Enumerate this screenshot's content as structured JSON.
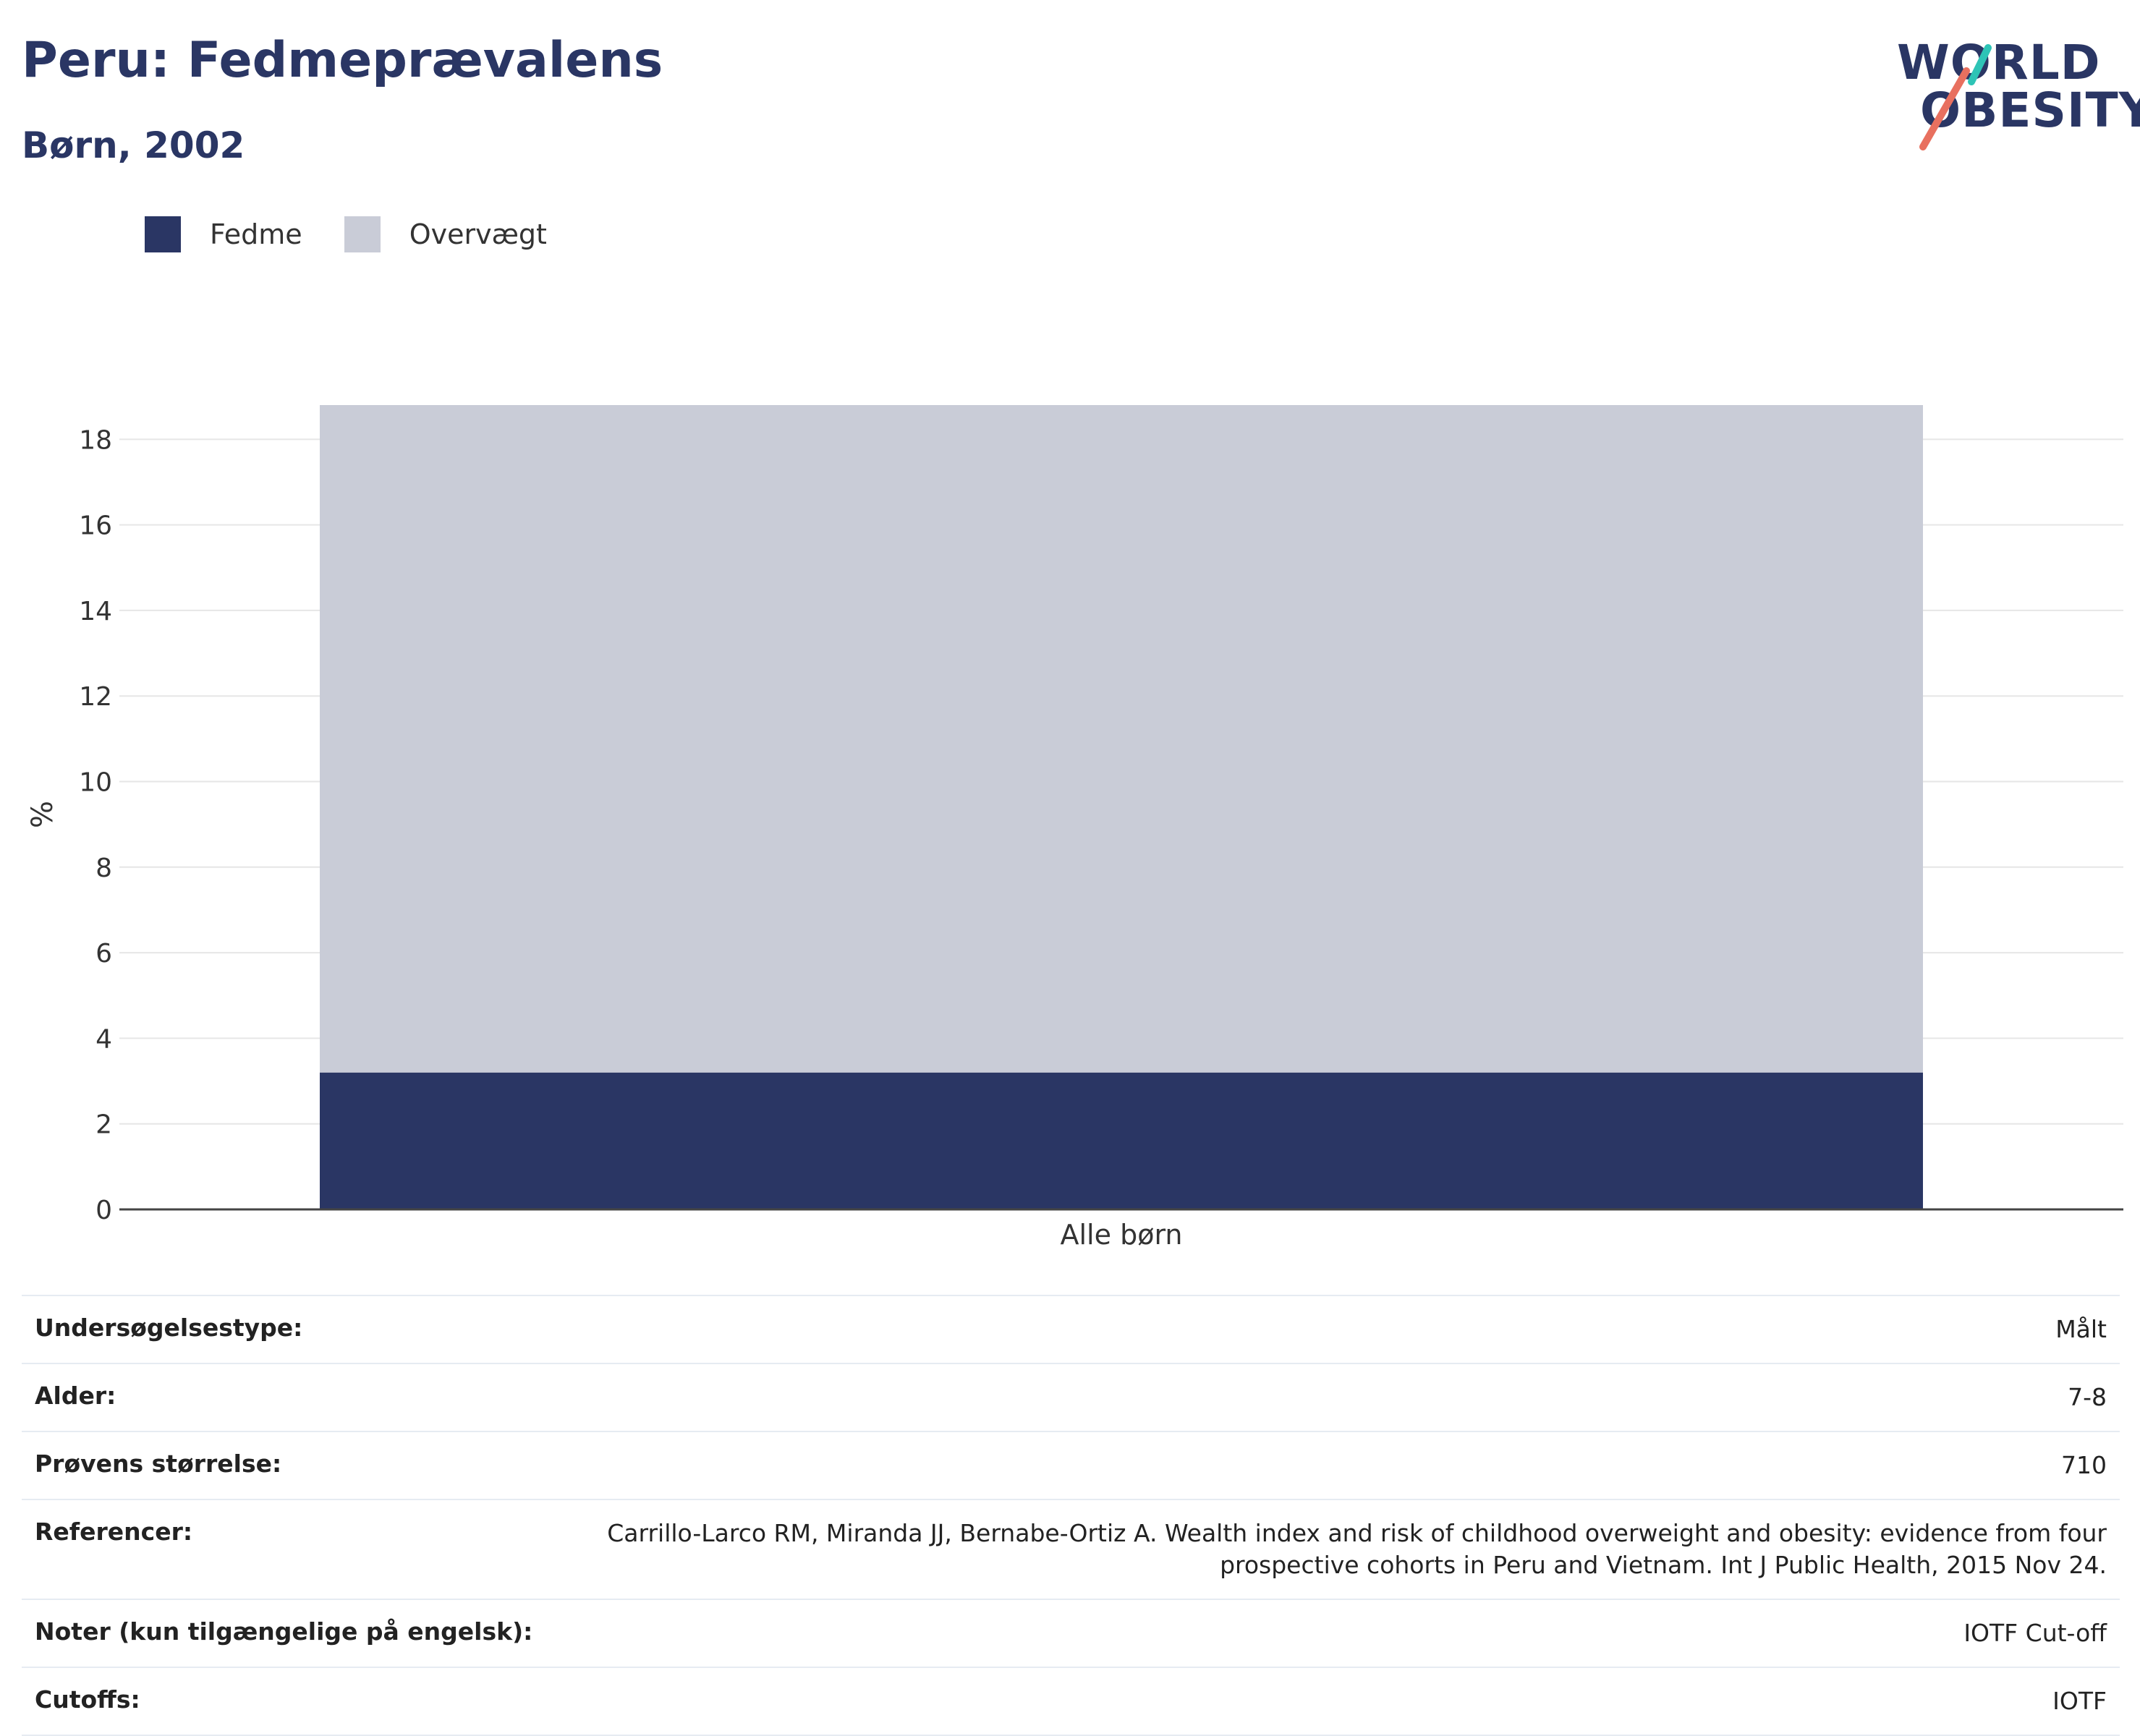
{
  "header": {
    "title": "Peru: Fedmeprævalens",
    "subtitle": "Børn, 2002"
  },
  "logo": {
    "line1": "WORLD",
    "line2": "OBESITY",
    "accent_teal": "#2ec4b6",
    "accent_coral": "#e8705f"
  },
  "colors": {
    "fedme": "#2a3664",
    "overvaegt": "#c9ccd7",
    "grid": "#e6e6e6",
    "axis": "#444444"
  },
  "legend": [
    {
      "label": "Fedme",
      "color": "#2a3664"
    },
    {
      "label": "Overvægt",
      "color": "#c9ccd7"
    }
  ],
  "chart_data": {
    "type": "bar",
    "stacked": true,
    "categories": [
      "Alle børn"
    ],
    "series": [
      {
        "name": "Fedme",
        "values": [
          3.2
        ]
      },
      {
        "name": "Overvægt",
        "values": [
          15.6
        ]
      }
    ],
    "total": [
      18.8
    ],
    "ylabel": "%",
    "xlabel": "",
    "ylim": [
      0,
      18.8
    ],
    "yticks": [
      0,
      2,
      4,
      6,
      8,
      10,
      12,
      14,
      16,
      18
    ],
    "grid": true,
    "legend_position": "top-left"
  },
  "info": [
    {
      "key": "Undersøgelsestype:",
      "value": "Målt"
    },
    {
      "key": "Alder:",
      "value": "7-8"
    },
    {
      "key": "Prøvens størrelse:",
      "value": "710"
    },
    {
      "key": "Referencer:",
      "value": "Carrillo-Larco RM, Miranda JJ, Bernabe-Ortiz A. Wealth index and risk of childhood overweight and obesity: evidence from four prospective cohorts in Peru and Vietnam. Int J Public Health, 2015 Nov 24."
    },
    {
      "key": "Noter (kun tilgængelige på engelsk):",
      "value": "IOTF Cut-off"
    },
    {
      "key": "Cutoffs:",
      "value": "IOTF"
    }
  ]
}
